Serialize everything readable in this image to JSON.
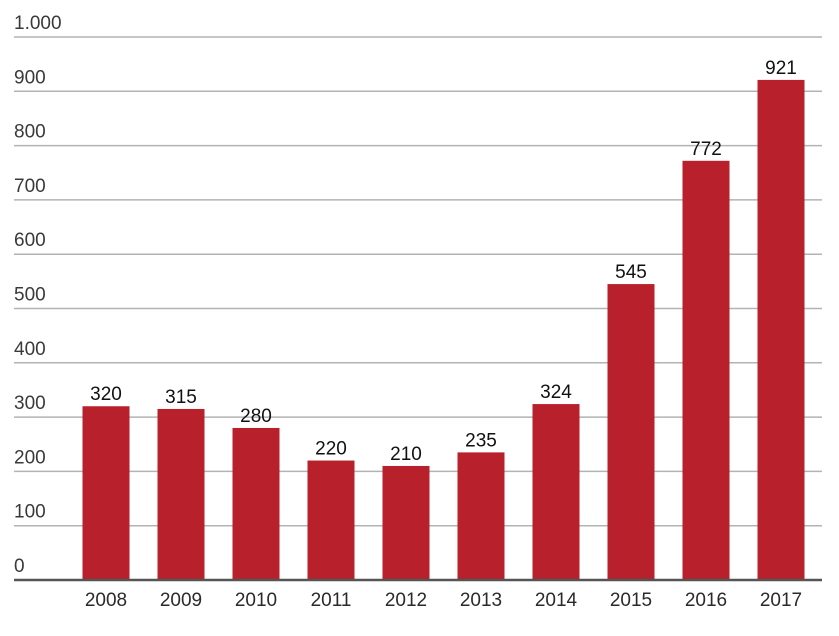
{
  "chart_data": {
    "type": "bar",
    "title": "",
    "xlabel": "",
    "ylabel": "",
    "categories": [
      "2008",
      "2009",
      "2010",
      "2011",
      "2012",
      "2013",
      "2014",
      "2015",
      "2016",
      "2017"
    ],
    "values": [
      320,
      315,
      280,
      220,
      210,
      235,
      324,
      545,
      772,
      921
    ],
    "value_labels": [
      "320",
      "315",
      "280",
      "220",
      "210",
      "235",
      "324",
      "545",
      "772",
      "921"
    ],
    "ylim": [
      0,
      1000
    ],
    "y_ticks": [
      0,
      100,
      200,
      300,
      400,
      500,
      600,
      700,
      800,
      900,
      1000
    ],
    "y_tick_labels": [
      "0",
      "100",
      "200",
      "300",
      "400",
      "500",
      "600",
      "700",
      "800",
      "900",
      "1.000"
    ],
    "grid": true,
    "legend": "none",
    "bar_color": "#b8202b",
    "grid_color": "#b3b3b3",
    "axis_color": "#555555"
  }
}
